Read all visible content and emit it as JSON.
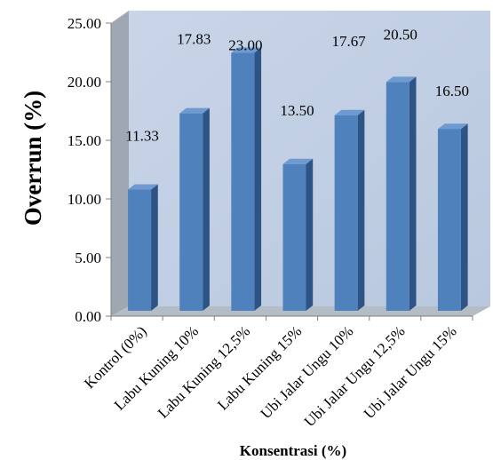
{
  "chart_data": {
    "type": "bar",
    "categories": [
      "Kontrol (0%)",
      "Labu Kuning 10%",
      "Labu Kuning 12,5%",
      "Labu Kuning 15%",
      "Ubi Jalar Ungu 10%",
      "Ubi Jalar Ungu 12,5%",
      "Ubi Jalar Ungu 15%"
    ],
    "values": [
      11.33,
      17.83,
      23.0,
      13.5,
      17.67,
      20.5,
      16.5
    ],
    "value_labels": [
      "11.33",
      "17.83",
      "23.00",
      "13.50",
      "17.67",
      "20.50",
      "16.50"
    ],
    "title": "",
    "xlabel": "Konsentrasi (%)",
    "ylabel": "Overrun (%)",
    "ylim": [
      0,
      25
    ],
    "yticks": [
      "0.00",
      "5.00",
      "10.00",
      "15.00",
      "20.00",
      "25.00"
    ],
    "grid": false,
    "legend": "none",
    "colors": {
      "bar_front": "#4f81bd",
      "bar_side": "#2d5485",
      "bar_top": "#6f9ad0",
      "back_wall": "#c6d3e6",
      "side_wall": "#9ea7b2",
      "floor": "#b4bcc6"
    }
  }
}
